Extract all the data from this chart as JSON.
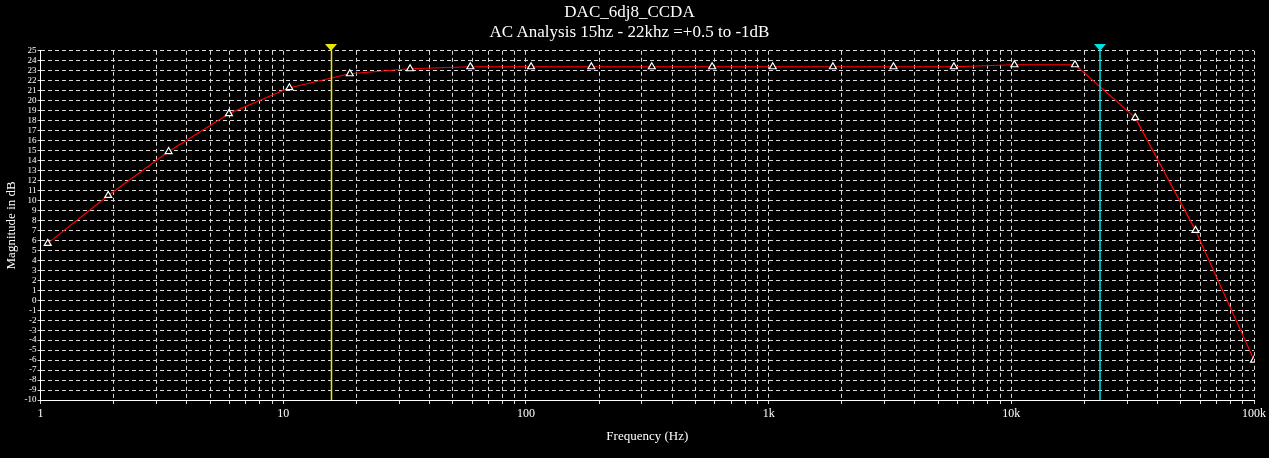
{
  "chart_data": {
    "type": "line",
    "title": "DAC_6dj8_CCDA",
    "subtitle": "AC Analysis 15hz - 22khz =+0.5 to -1dB",
    "xlabel": "Frequency (Hz)",
    "ylabel": "Magnitude in dB",
    "x": [
      1.07,
      1.9,
      3.37,
      5.97,
      10.6,
      18.8,
      33.3,
      59,
      105,
      186,
      330,
      585,
      1040,
      1840,
      3270,
      5800,
      10300,
      18300,
      32400,
      57400,
      100000
    ],
    "series": [
      {
        "color": "#ff0000",
        "values": [
          5.7,
          10.5,
          14.9,
          18.7,
          21.3,
          22.7,
          23.2,
          23.4,
          23.4,
          23.4,
          23.4,
          23.4,
          23.4,
          23.4,
          23.4,
          23.4,
          23.6,
          23.6,
          18.3,
          7.0,
          -6.0
        ]
      }
    ],
    "log": "x",
    "xlim": [
      1,
      100000
    ],
    "xticks": [
      {
        "value": 1,
        "label": "1"
      },
      {
        "value": 2,
        "label": null
      },
      {
        "value": 3,
        "label": null
      },
      {
        "value": 4,
        "label": null
      },
      {
        "value": 5,
        "label": null
      },
      {
        "value": 6,
        "label": null
      },
      {
        "value": 7,
        "label": null
      },
      {
        "value": 8,
        "label": null
      },
      {
        "value": 9,
        "label": null
      },
      {
        "value": 10,
        "label": "10"
      },
      {
        "value": 20,
        "label": null
      },
      {
        "value": 30,
        "label": null
      },
      {
        "value": 40,
        "label": null
      },
      {
        "value": 50,
        "label": null
      },
      {
        "value": 60,
        "label": null
      },
      {
        "value": 70,
        "label": null
      },
      {
        "value": 80,
        "label": null
      },
      {
        "value": 90,
        "label": null
      },
      {
        "value": 100,
        "label": "100"
      },
      {
        "value": 200,
        "label": null
      },
      {
        "value": 300,
        "label": null
      },
      {
        "value": 400,
        "label": null
      },
      {
        "value": 500,
        "label": null
      },
      {
        "value": 600,
        "label": null
      },
      {
        "value": 700,
        "label": null
      },
      {
        "value": 800,
        "label": null
      },
      {
        "value": 900,
        "label": null
      },
      {
        "value": 1000,
        "label": "1k"
      },
      {
        "value": 2000,
        "label": null
      },
      {
        "value": 3000,
        "label": null
      },
      {
        "value": 4000,
        "label": null
      },
      {
        "value": 5000,
        "label": null
      },
      {
        "value": 6000,
        "label": null
      },
      {
        "value": 7000,
        "label": null
      },
      {
        "value": 8000,
        "label": null
      },
      {
        "value": 9000,
        "label": null
      },
      {
        "value": 10000,
        "label": "10k"
      },
      {
        "value": 20000,
        "label": null
      },
      {
        "value": 30000,
        "label": null
      },
      {
        "value": 40000,
        "label": null
      },
      {
        "value": 50000,
        "label": null
      },
      {
        "value": 60000,
        "label": null
      },
      {
        "value": 70000,
        "label": null
      },
      {
        "value": 80000,
        "label": null
      },
      {
        "value": 90000,
        "label": null
      },
      {
        "value": 100000,
        "label": "100k"
      }
    ],
    "ylim": [
      -10,
      25
    ],
    "yticks": [
      -10,
      -9,
      -8,
      -7,
      -6,
      -5,
      -4,
      -3,
      -2,
      -1,
      0,
      1,
      2,
      3,
      4,
      5,
      6,
      7,
      8,
      9,
      10,
      11,
      12,
      13,
      14,
      15,
      16,
      17,
      18,
      19,
      20,
      21,
      22,
      23,
      24,
      25
    ],
    "ref_lines": [
      {
        "axis": "x",
        "value": 15.8,
        "color": "#e8e800"
      },
      {
        "axis": "x",
        "value": 23200,
        "color": "#00e0e0"
      }
    ],
    "grid": true,
    "legend": false,
    "marker": "triangle",
    "line_style": "solid"
  }
}
